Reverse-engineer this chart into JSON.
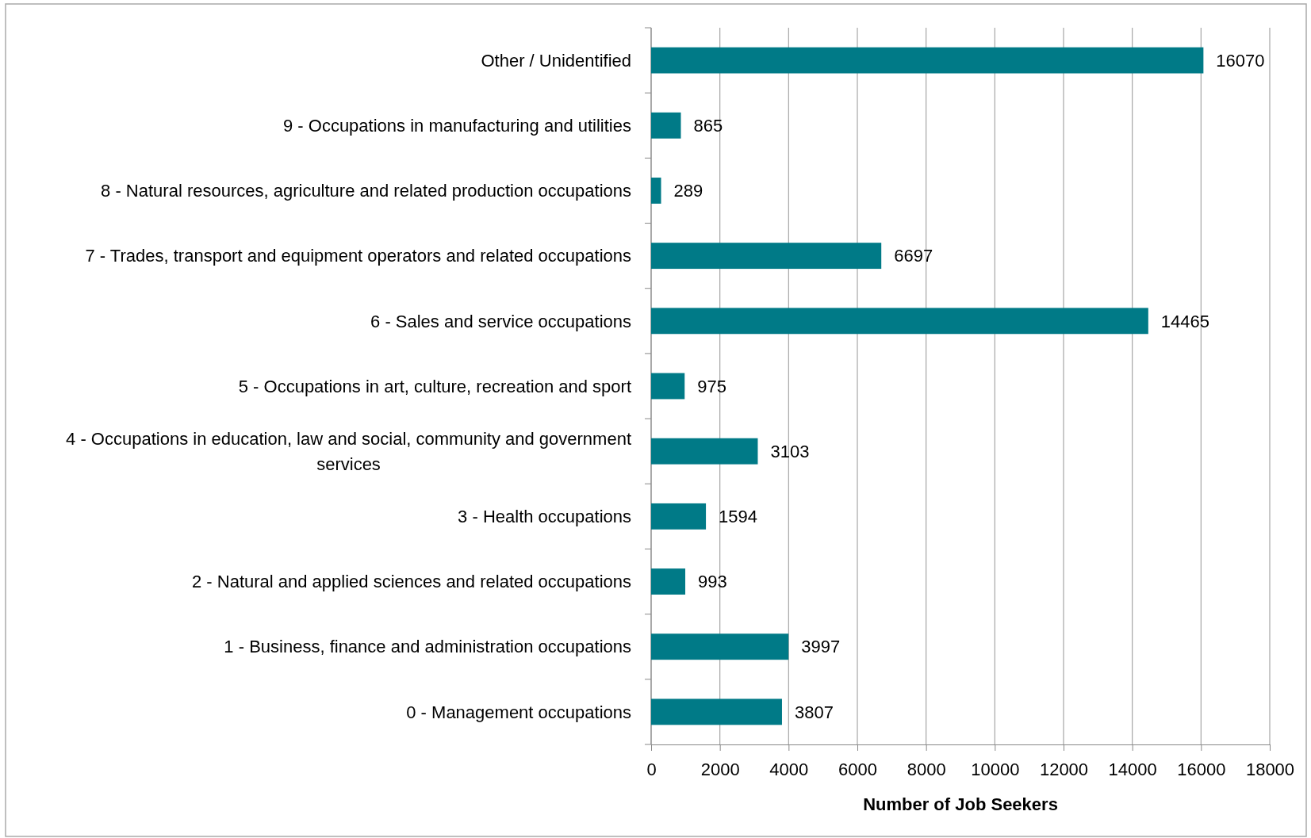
{
  "chart_data": {
    "type": "bar",
    "orientation": "horizontal",
    "xlabel": "Number of Job Seekers",
    "categories": [
      "Other / Unidentified",
      "9 - Occupations in manufacturing and utilities",
      "8 - Natural resources, agriculture and related production occupations",
      "7 - Trades, transport and equipment operators and related occupations",
      "6 - Sales and service occupations",
      "5 - Occupations in art, culture, recreation and sport",
      "4 - Occupations in education, law and social, community and government services",
      "3 - Health occupations",
      "2 - Natural and applied sciences and related occupations",
      "1 - Business, finance and administration occupations",
      "0 - Management occupations"
    ],
    "values": [
      16070,
      865,
      289,
      6697,
      14465,
      975,
      3103,
      1594,
      993,
      3997,
      3807
    ],
    "color": "#007a87",
    "xlim": [
      0,
      18000
    ],
    "xticks": [
      0,
      2000,
      4000,
      6000,
      8000,
      10000,
      12000,
      14000,
      16000,
      18000
    ],
    "grid": "x",
    "data_labels": true
  }
}
